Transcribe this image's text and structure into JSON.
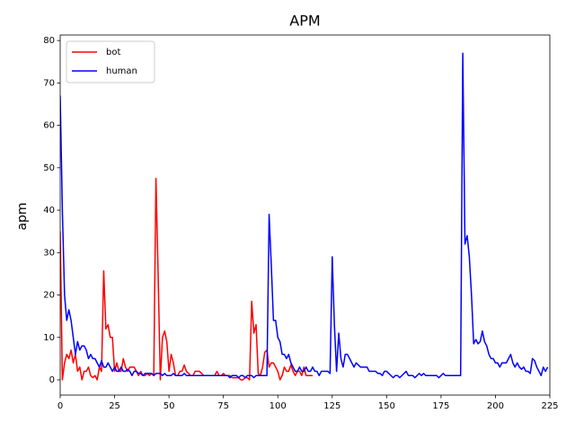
{
  "chart_data": {
    "type": "line",
    "title": "APM",
    "y_label": "apm",
    "xlim": [
      0,
      225
    ],
    "ylim": [
      -3.6,
      81.3
    ],
    "xticks": [
      0,
      25,
      50,
      75,
      100,
      125,
      150,
      175,
      200,
      225
    ],
    "yticks": [
      0,
      10,
      20,
      30,
      40,
      50,
      60,
      70,
      80
    ],
    "grid": false,
    "legend": "upper left",
    "series": [
      {
        "name": "bot",
        "color": "#ff0000",
        "x": [
          0,
          1,
          2,
          3,
          4,
          5,
          6,
          7,
          8,
          9,
          10,
          11,
          12,
          13,
          14,
          15,
          16,
          17,
          18,
          19,
          20,
          21,
          22,
          23,
          24,
          25,
          26,
          27,
          28,
          29,
          30,
          31,
          32,
          33,
          34,
          35,
          36,
          37,
          38,
          39,
          40,
          41,
          42,
          43,
          44,
          45,
          46,
          47,
          48,
          49,
          50,
          51,
          52,
          53,
          54,
          55,
          56,
          57,
          58,
          59,
          60,
          61,
          62,
          63,
          64,
          65,
          66,
          67,
          68,
          69,
          70,
          71,
          72,
          73,
          74,
          75,
          76,
          77,
          78,
          79,
          80,
          81,
          82,
          83,
          84,
          85,
          86,
          87,
          88,
          89,
          90,
          91,
          92,
          93,
          94,
          95,
          96,
          97,
          98,
          99,
          100,
          101,
          102,
          103,
          104,
          105,
          106,
          107,
          108,
          109,
          110,
          111,
          112,
          113,
          114,
          115,
          116
        ],
        "values": [
          35,
          0,
          4,
          6,
          5,
          7,
          4,
          6,
          2,
          3,
          0,
          2,
          2,
          3,
          1,
          0.5,
          1,
          0,
          3,
          2,
          25.7,
          12,
          13,
          10,
          10,
          2,
          4,
          2,
          2,
          5,
          3,
          2,
          3,
          3,
          3,
          2,
          1,
          2,
          1,
          1,
          1.5,
          1,
          1.5,
          1,
          47.5,
          25,
          0,
          10,
          11.5,
          9,
          2,
          6,
          4,
          1,
          1,
          2,
          2,
          3.5,
          2,
          1.5,
          1,
          1,
          2,
          2,
          2,
          1.5,
          1,
          1,
          1,
          1,
          1,
          1,
          2,
          1,
          1,
          1.5,
          1,
          1,
          1,
          0.5,
          0.5,
          0.5,
          0.5,
          0,
          0,
          0.5,
          0.5,
          0,
          18.5,
          11,
          13,
          1.5,
          1,
          3,
          6.5,
          7,
          3,
          4,
          4,
          3,
          2,
          0,
          1,
          3,
          2,
          2,
          3.5,
          2,
          1,
          2,
          2,
          1,
          3,
          1,
          1,
          1,
          1
        ]
      },
      {
        "name": "human",
        "color": "#0000ff",
        "x": [
          0,
          1,
          2,
          3,
          4,
          5,
          6,
          7,
          8,
          9,
          10,
          11,
          12,
          13,
          14,
          15,
          16,
          17,
          18,
          19,
          20,
          21,
          22,
          23,
          24,
          25,
          26,
          27,
          28,
          29,
          30,
          31,
          32,
          33,
          34,
          35,
          36,
          37,
          38,
          39,
          40,
          41,
          42,
          43,
          44,
          45,
          46,
          47,
          48,
          49,
          50,
          51,
          52,
          53,
          54,
          55,
          56,
          57,
          58,
          59,
          60,
          61,
          62,
          63,
          64,
          65,
          66,
          67,
          68,
          69,
          70,
          71,
          72,
          73,
          74,
          75,
          76,
          77,
          78,
          79,
          80,
          81,
          82,
          83,
          84,
          85,
          86,
          87,
          88,
          89,
          90,
          91,
          92,
          93,
          94,
          95,
          96,
          97,
          98,
          99,
          100,
          101,
          102,
          103,
          104,
          105,
          106,
          107,
          108,
          109,
          110,
          111,
          112,
          113,
          114,
          115,
          116,
          117,
          118,
          119,
          120,
          121,
          122,
          123,
          124,
          125,
          126,
          127,
          128,
          129,
          130,
          131,
          132,
          133,
          134,
          135,
          136,
          137,
          138,
          139,
          140,
          141,
          142,
          143,
          144,
          145,
          146,
          147,
          148,
          149,
          150,
          151,
          152,
          153,
          154,
          155,
          156,
          157,
          158,
          159,
          160,
          161,
          162,
          163,
          164,
          165,
          166,
          167,
          168,
          169,
          170,
          171,
          172,
          173,
          174,
          175,
          176,
          177,
          178,
          179,
          180,
          181,
          182,
          183,
          184,
          185,
          186,
          187,
          188,
          189,
          190,
          191,
          192,
          193,
          194,
          195,
          196,
          197,
          198,
          199,
          200,
          201,
          202,
          203,
          204,
          205,
          206,
          207,
          208,
          209,
          210,
          211,
          212,
          213,
          214,
          215,
          216,
          217,
          218,
          219,
          220,
          221,
          222,
          223,
          224
        ],
        "values": [
          67,
          40,
          20,
          14,
          16.5,
          14,
          10,
          6,
          9,
          7,
          8,
          8,
          7,
          5,
          6,
          5,
          5,
          4,
          3,
          4.5,
          3,
          3,
          4,
          3,
          2,
          3,
          2,
          2,
          3,
          2,
          2,
          2.5,
          2,
          1,
          2,
          2,
          1.5,
          1.5,
          1,
          1.5,
          1.5,
          1.5,
          1.5,
          1,
          1.5,
          1.5,
          1.5,
          1,
          1.5,
          1,
          1,
          1,
          1.5,
          1,
          1,
          1,
          1,
          1.5,
          1,
          1,
          1,
          1,
          1,
          1,
          1,
          1,
          1,
          1,
          1,
          1,
          1,
          1,
          1,
          1,
          1,
          1,
          1,
          1,
          0.5,
          1,
          1,
          1,
          0.5,
          1,
          1,
          0.5,
          1,
          1,
          1,
          0.5,
          1,
          1,
          1,
          1,
          1,
          1,
          39,
          27,
          14,
          14,
          10,
          9,
          6,
          6,
          5,
          6,
          4,
          3,
          2,
          2,
          3,
          2,
          2,
          3,
          2,
          2,
          3,
          2,
          2,
          1,
          2,
          2,
          2,
          2,
          1.5,
          29,
          13,
          2,
          11,
          5,
          3,
          6,
          6,
          5,
          4,
          3,
          4,
          3.5,
          3,
          3,
          3,
          3,
          2,
          2,
          2,
          2,
          1.5,
          1.5,
          1,
          2,
          2,
          1.5,
          1,
          0.5,
          1,
          1,
          0.5,
          1,
          1.5,
          2,
          1,
          1,
          1,
          0.5,
          1,
          1.5,
          1,
          1.5,
          1,
          1,
          1,
          1,
          1,
          1,
          0.5,
          1,
          1.5,
          1,
          1,
          1,
          1,
          1,
          1,
          1,
          1,
          77,
          32,
          34,
          29,
          20,
          8.5,
          9.5,
          8.5,
          9,
          11.5,
          9,
          8,
          6,
          5,
          5,
          4,
          4,
          3,
          4,
          4,
          4,
          5,
          6,
          4,
          3,
          4,
          3,
          2.5,
          3,
          2,
          2,
          1.5,
          5,
          4.5,
          3,
          2,
          1,
          3,
          2,
          3
        ]
      }
    ]
  }
}
